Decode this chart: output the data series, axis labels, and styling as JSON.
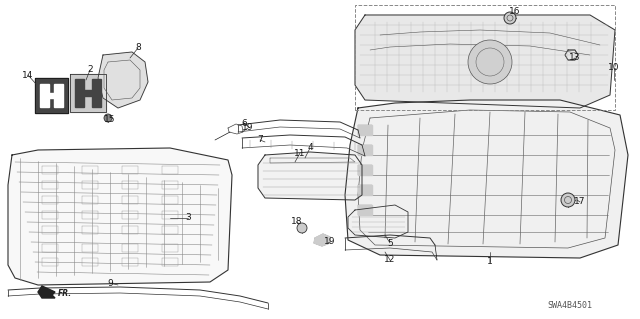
{
  "background_color": "#ffffff",
  "diagram_code": "SWA4B4501",
  "figure_width": 6.4,
  "figure_height": 3.19,
  "dpi": 100,
  "note_text": "SWA4B4501",
  "label_fontsize": 6.5,
  "line_color": "#1a1a1a",
  "gray_color": "#666666",
  "light_gray": "#aaaaaa"
}
